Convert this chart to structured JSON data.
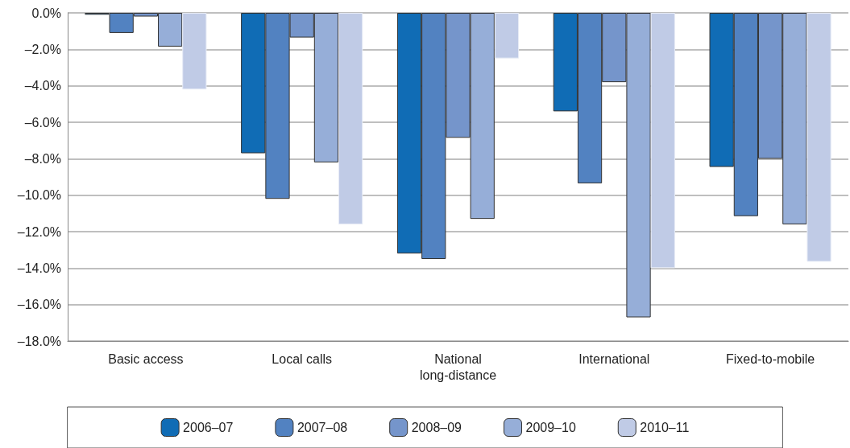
{
  "chart_data": {
    "type": "bar",
    "categories": [
      "Basic access",
      "Local calls",
      "National\nlong-distance",
      "International",
      "Fixed-to-mobile"
    ],
    "series": [
      {
        "name": "2006–07",
        "color": "#106cb5",
        "values": [
          -0.1,
          -7.7,
          -13.2,
          -5.4,
          -8.45
        ]
      },
      {
        "name": "2007–08",
        "color": "#5282c1",
        "values": [
          -1.1,
          -10.2,
          -13.5,
          -9.35,
          -11.15
        ]
      },
      {
        "name": "2008–09",
        "color": "#7595cb",
        "values": [
          -0.2,
          -1.35,
          -6.85,
          -3.8,
          -8.0
        ]
      },
      {
        "name": "2009–10",
        "color": "#96aed8",
        "values": [
          -1.85,
          -8.2,
          -11.3,
          -16.7,
          -11.6
        ]
      },
      {
        "name": "2010–11",
        "color": "#c0cbe6",
        "values": [
          -4.2,
          -11.6,
          -2.5,
          -14.0,
          -13.65
        ]
      }
    ],
    "ylim": [
      -18,
      0
    ],
    "yticks": [
      {
        "value": 0,
        "label": "0.0%"
      },
      {
        "value": -2,
        "label": "–2.0%"
      },
      {
        "value": -4,
        "label": "–4.0%"
      },
      {
        "value": -6,
        "label": "–6.0%"
      },
      {
        "value": -8,
        "label": "–8.0%"
      },
      {
        "value": -10,
        "label": "–10.0%"
      },
      {
        "value": -12,
        "label": "–12.0%"
      },
      {
        "value": -14,
        "label": "–14.0%"
      },
      {
        "value": -16,
        "label": "–16.0%"
      },
      {
        "value": -18,
        "label": "–18.0%"
      }
    ],
    "grid": "y",
    "legend": "bottom"
  }
}
